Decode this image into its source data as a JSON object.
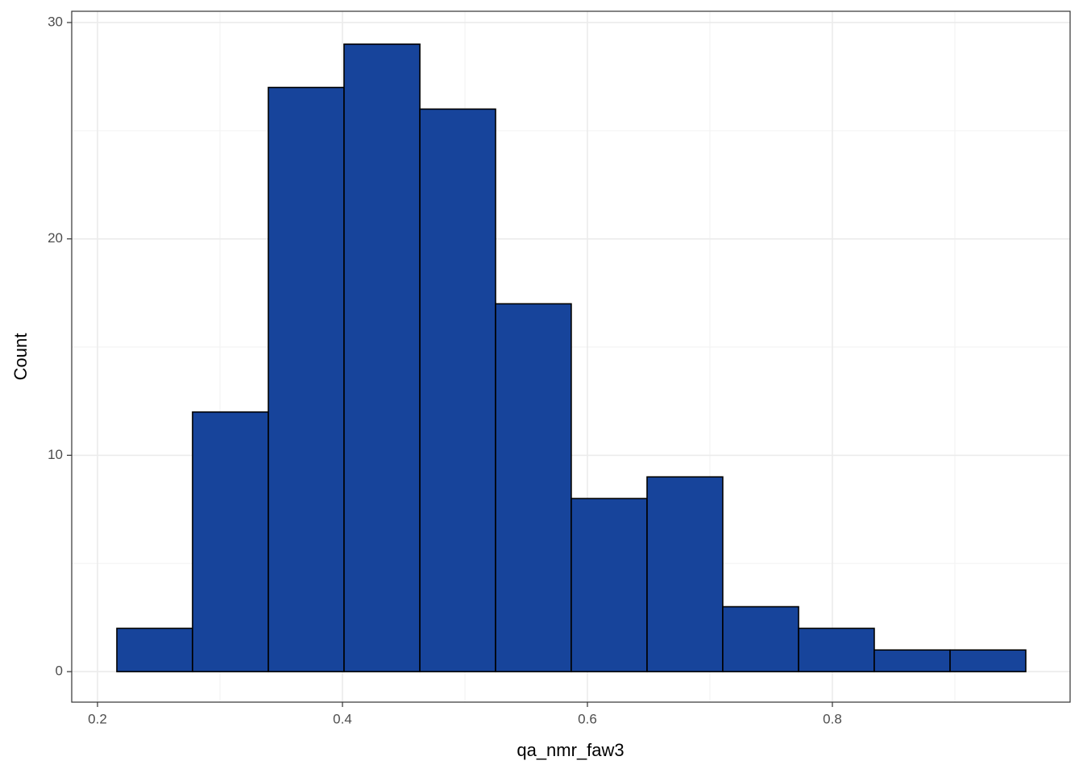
{
  "chart_data": {
    "type": "histogram",
    "x_label": "qa_nmr_faw3",
    "y_label": "Count",
    "bins": [
      0.2158,
      0.2776,
      0.3395,
      0.4013,
      0.4632,
      0.525,
      0.5868,
      0.6487,
      0.7105,
      0.7724,
      0.8342,
      0.8961,
      0.9579
    ],
    "values": [
      2,
      12,
      27,
      29,
      26,
      17,
      8,
      9,
      3,
      2,
      1,
      1
    ],
    "color": "#17449b",
    "edge_color": "#000000",
    "xlim": [
      0.17895,
      0.9941
    ],
    "ylim": [
      -1.41,
      30.52
    ],
    "xticks": [
      0.2,
      0.4,
      0.6,
      0.8
    ],
    "yticks": [
      0,
      10,
      20,
      30
    ],
    "xminor": [
      0.3,
      0.5,
      0.7,
      0.9
    ],
    "yminor": [
      5,
      15,
      25
    ],
    "grid": true
  }
}
